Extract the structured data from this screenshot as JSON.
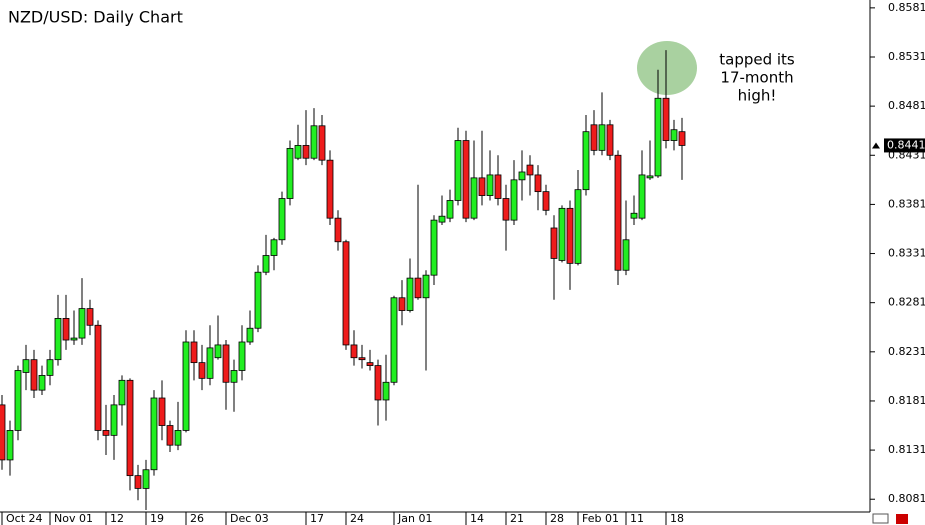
{
  "chart_data": {
    "type": "candlestick",
    "title": "NZD/USD: Daily Chart",
    "annotation": [
      "tapped its",
      "17-month",
      "high!"
    ],
    "up_color": "#22ee22",
    "down_color": "#ee1c1c",
    "ylim": [
      0.8068,
      0.8589
    ],
    "yticks": [
      0.8581,
      0.8531,
      0.8481,
      0.8431,
      0.8381,
      0.8331,
      0.8281,
      0.8231,
      0.8181,
      0.8131,
      0.8081
    ],
    "last_price": 0.8441,
    "categories": [
      "Oct 24",
      null,
      null,
      null,
      null,
      null,
      "Nov 01",
      null,
      null,
      null,
      null,
      null,
      null,
      "12",
      null,
      null,
      null,
      null,
      "19",
      null,
      null,
      null,
      null,
      "26",
      null,
      null,
      null,
      null,
      "Dec 03",
      null,
      null,
      null,
      null,
      null,
      null,
      null,
      null,
      null,
      "17",
      null,
      null,
      null,
      null,
      "24",
      null,
      null,
      null,
      null,
      null,
      "Jan 01",
      null,
      null,
      null,
      null,
      null,
      null,
      null,
      null,
      "14",
      null,
      null,
      null,
      null,
      "21",
      null,
      null,
      null,
      null,
      "28",
      null,
      null,
      null,
      "Feb 01",
      null,
      null,
      null,
      null,
      null,
      "11",
      null,
      null,
      null,
      null,
      "18",
      null,
      null
    ],
    "open": [
      0.8177,
      0.8121,
      0.8151,
      0.821,
      0.8223,
      0.8192,
      0.8207,
      0.8223,
      0.8265,
      0.8243,
      0.8245,
      0.8275,
      0.8258,
      0.8151,
      0.8146,
      0.8177,
      0.8202,
      0.8105,
      0.8092,
      0.8111,
      0.8184,
      0.8156,
      0.8136,
      0.8151,
      0.8241,
      0.822,
      0.8204,
      0.8225,
      0.8238,
      0.82,
      0.8212,
      0.8241,
      0.8255,
      0.8312,
      0.8329,
      0.8345,
      0.8387,
      0.8428,
      0.8441,
      0.8428,
      0.8461,
      0.8426,
      0.8367,
      0.8343,
      0.8238,
      0.8225,
      0.822,
      0.8217,
      0.8182,
      0.82,
      0.8286,
      0.8273,
      0.8306,
      0.8286,
      0.8309,
      0.8363,
      0.8367,
      0.8385,
      0.8446,
      0.8367,
      0.8408,
      0.839,
      0.8411,
      0.8387,
      0.8365,
      0.8406,
      0.8421,
      0.8411,
      0.8394,
      0.8357,
      0.8324,
      0.8377,
      0.8321,
      0.8396,
      0.8462,
      0.8436,
      0.8462,
      0.8431,
      0.8314,
      0.8367,
      0.8367,
      0.8408,
      0.841,
      0.8489,
      0.8446,
      0.8455
    ],
    "high": [
      0.8187,
      0.8161,
      0.8217,
      0.8238,
      0.8233,
      0.8217,
      0.8233,
      0.8289,
      0.8289,
      0.8273,
      0.8306,
      0.8284,
      0.8263,
      0.8177,
      0.8187,
      0.8207,
      0.8204,
      0.8116,
      0.8121,
      0.8192,
      0.8202,
      0.8161,
      0.818,
      0.8253,
      0.8253,
      0.8238,
      0.8258,
      0.8268,
      0.8243,
      0.8223,
      0.8258,
      0.8273,
      0.8319,
      0.835,
      0.8347,
      0.8394,
      0.8446,
      0.8462,
      0.8477,
      0.8479,
      0.8472,
      0.8436,
      0.8375,
      0.8345,
      0.8253,
      0.8238,
      0.8233,
      0.8223,
      0.8228,
      0.8288,
      0.8304,
      0.8326,
      0.8401,
      0.8314,
      0.837,
      0.839,
      0.8396,
      0.8459,
      0.8456,
      0.8446,
      0.8456,
      0.8436,
      0.8431,
      0.8401,
      0.8426,
      0.8436,
      0.8431,
      0.8421,
      0.8401,
      0.837,
      0.838,
      0.8385,
      0.8416,
      0.8472,
      0.8477,
      0.8495,
      0.8467,
      0.8436,
      0.8385,
      0.839,
      0.8436,
      0.8446,
      0.8518,
      0.8538,
      0.8467,
      0.8469
    ],
    "low": [
      0.8111,
      0.8105,
      0.8141,
      0.8192,
      0.8184,
      0.8187,
      0.8197,
      0.8217,
      0.8233,
      0.8238,
      0.8238,
      0.8248,
      0.8141,
      0.8126,
      0.8121,
      0.8156,
      0.809,
      0.808,
      0.807,
      0.8105,
      0.8141,
      0.8129,
      0.8131,
      0.8149,
      0.8202,
      0.8192,
      0.8197,
      0.8223,
      0.8172,
      0.817,
      0.8202,
      0.8238,
      0.8251,
      0.8309,
      0.8314,
      0.834,
      0.838,
      0.8426,
      0.8421,
      0.8426,
      0.8421,
      0.836,
      0.8334,
      0.8233,
      0.8217,
      0.8214,
      0.8212,
      0.8156,
      0.8161,
      0.8197,
      0.8258,
      0.8271,
      0.8284,
      0.8212,
      0.8299,
      0.836,
      0.8363,
      0.838,
      0.8363,
      0.8365,
      0.838,
      0.8385,
      0.838,
      0.8334,
      0.836,
      0.8385,
      0.839,
      0.8375,
      0.837,
      0.8284,
      0.8322,
      0.8294,
      0.8319,
      0.839,
      0.8431,
      0.8431,
      0.8426,
      0.8299,
      0.8309,
      0.836,
      0.8365,
      0.8406,
      0.8408,
      0.8438,
      0.8436,
      0.8406
    ],
    "close": [
      0.8121,
      0.8151,
      0.8212,
      0.8223,
      0.8192,
      0.8207,
      0.8223,
      0.8265,
      0.8243,
      0.8245,
      0.8275,
      0.8258,
      0.8151,
      0.8146,
      0.8177,
      0.8202,
      0.8105,
      0.8092,
      0.8111,
      0.8184,
      0.8156,
      0.8136,
      0.8151,
      0.8241,
      0.822,
      0.8204,
      0.8235,
      0.8238,
      0.82,
      0.8212,
      0.8241,
      0.8255,
      0.8312,
      0.8329,
      0.8345,
      0.8387,
      0.8438,
      0.8441,
      0.8428,
      0.8461,
      0.8426,
      0.8367,
      0.8343,
      0.8238,
      0.8225,
      0.8223,
      0.8217,
      0.8182,
      0.82,
      0.8286,
      0.8273,
      0.8306,
      0.8286,
      0.8309,
      0.8365,
      0.8369,
      0.8385,
      0.8446,
      0.8367,
      0.8408,
      0.839,
      0.8411,
      0.8387,
      0.8365,
      0.8406,
      0.8414,
      0.8411,
      0.8394,
      0.8375,
      0.8326,
      0.8377,
      0.8321,
      0.8396,
      0.8455,
      0.8436,
      0.8462,
      0.8431,
      0.8314,
      0.8345,
      0.8372,
      0.8411,
      0.841,
      0.8489,
      0.8446,
      0.8457,
      0.8441
    ]
  }
}
